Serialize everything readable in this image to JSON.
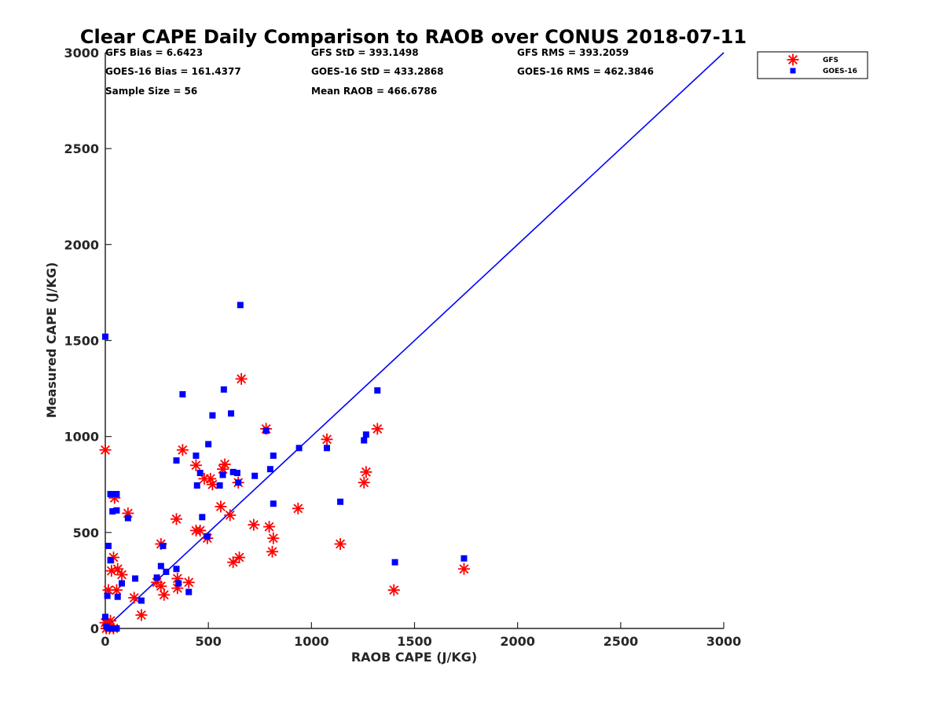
{
  "chart_data": {
    "type": "scatter",
    "title": "Clear CAPE Daily Comparison to RAOB over CONUS 2018-07-11",
    "xlabel": "RAOB CAPE (J/KG)",
    "ylabel": "Measured CAPE (J/KG)",
    "xlim": [
      0,
      3000
    ],
    "ylim": [
      0,
      3000
    ],
    "xticks": [
      0,
      500,
      1000,
      1500,
      2000,
      2500,
      3000
    ],
    "yticks": [
      0,
      500,
      1000,
      1500,
      2000,
      2500,
      3000
    ],
    "xtick_labels": [
      "0",
      "500",
      "1000",
      "1500",
      "2000",
      "2500",
      "3000"
    ],
    "ytick_labels": [
      "0",
      "500",
      "1000",
      "1500",
      "2000",
      "2500",
      "3000"
    ],
    "grid": false,
    "legend_position": "top-right",
    "reference_line": {
      "from": [
        0,
        0
      ],
      "to": [
        3000,
        3000
      ],
      "color": "#0000ff"
    },
    "stats": [
      [
        "GFS Bias = 6.6423",
        "GFS StD = 393.1498",
        "GFS RMS = 393.2059"
      ],
      [
        "GOES-16 Bias = 161.4377",
        "GOES-16 StD = 433.2868",
        "GOES-16 RMS = 462.3846"
      ],
      [
        "Sample Size = 56",
        "Mean RAOB = 466.6786",
        ""
      ]
    ],
    "series": [
      {
        "name": "GFS",
        "marker": "asterisk",
        "color": "#ff0000",
        "points": [
          [
            0,
            930
          ],
          [
            0,
            30
          ],
          [
            5,
            0
          ],
          [
            12,
            20
          ],
          [
            20,
            0
          ],
          [
            25,
            40
          ],
          [
            40,
            0
          ],
          [
            15,
            200
          ],
          [
            30,
            300
          ],
          [
            40,
            370
          ],
          [
            55,
            200
          ],
          [
            60,
            310
          ],
          [
            80,
            280
          ],
          [
            45,
            680
          ],
          [
            110,
            600
          ],
          [
            140,
            160
          ],
          [
            175,
            70
          ],
          [
            250,
            240
          ],
          [
            270,
            220
          ],
          [
            270,
            440
          ],
          [
            285,
            175
          ],
          [
            345,
            570
          ],
          [
            350,
            260
          ],
          [
            350,
            210
          ],
          [
            375,
            930
          ],
          [
            405,
            240
          ],
          [
            440,
            850
          ],
          [
            440,
            510
          ],
          [
            460,
            510
          ],
          [
            480,
            780
          ],
          [
            495,
            470
          ],
          [
            510,
            780
          ],
          [
            520,
            750
          ],
          [
            560,
            635
          ],
          [
            570,
            830
          ],
          [
            580,
            855
          ],
          [
            605,
            590
          ],
          [
            620,
            345
          ],
          [
            645,
            760
          ],
          [
            650,
            370
          ],
          [
            660,
            1300
          ],
          [
            720,
            540
          ],
          [
            780,
            1040
          ],
          [
            795,
            530
          ],
          [
            810,
            400
          ],
          [
            815,
            470
          ],
          [
            935,
            625
          ],
          [
            1075,
            985
          ],
          [
            1140,
            440
          ],
          [
            1255,
            760
          ],
          [
            1265,
            815
          ],
          [
            1320,
            1040
          ],
          [
            1400,
            200
          ],
          [
            1740,
            310
          ]
        ]
      },
      {
        "name": "GOES-16",
        "marker": "square",
        "color": "#0000ff",
        "points": [
          [
            0,
            1520
          ],
          [
            0,
            60
          ],
          [
            5,
            10
          ],
          [
            15,
            0
          ],
          [
            30,
            0
          ],
          [
            55,
            0
          ],
          [
            10,
            170
          ],
          [
            15,
            430
          ],
          [
            25,
            355
          ],
          [
            25,
            700
          ],
          [
            35,
            610
          ],
          [
            55,
            700
          ],
          [
            55,
            615
          ],
          [
            60,
            165
          ],
          [
            80,
            235
          ],
          [
            110,
            575
          ],
          [
            145,
            260
          ],
          [
            175,
            145
          ],
          [
            250,
            265
          ],
          [
            270,
            325
          ],
          [
            280,
            430
          ],
          [
            295,
            295
          ],
          [
            345,
            310
          ],
          [
            345,
            875
          ],
          [
            355,
            235
          ],
          [
            375,
            1220
          ],
          [
            405,
            190
          ],
          [
            440,
            900
          ],
          [
            445,
            745
          ],
          [
            460,
            810
          ],
          [
            470,
            580
          ],
          [
            495,
            480
          ],
          [
            500,
            960
          ],
          [
            520,
            1110
          ],
          [
            555,
            745
          ],
          [
            570,
            800
          ],
          [
            575,
            1245
          ],
          [
            610,
            1120
          ],
          [
            620,
            815
          ],
          [
            640,
            810
          ],
          [
            645,
            760
          ],
          [
            655,
            1685
          ],
          [
            725,
            795
          ],
          [
            780,
            1030
          ],
          [
            800,
            830
          ],
          [
            815,
            900
          ],
          [
            815,
            650
          ],
          [
            940,
            940
          ],
          [
            1075,
            940
          ],
          [
            1140,
            660
          ],
          [
            1255,
            980
          ],
          [
            1265,
            1010
          ],
          [
            1320,
            1240
          ],
          [
            1405,
            345
          ],
          [
            1740,
            365
          ]
        ]
      }
    ]
  }
}
